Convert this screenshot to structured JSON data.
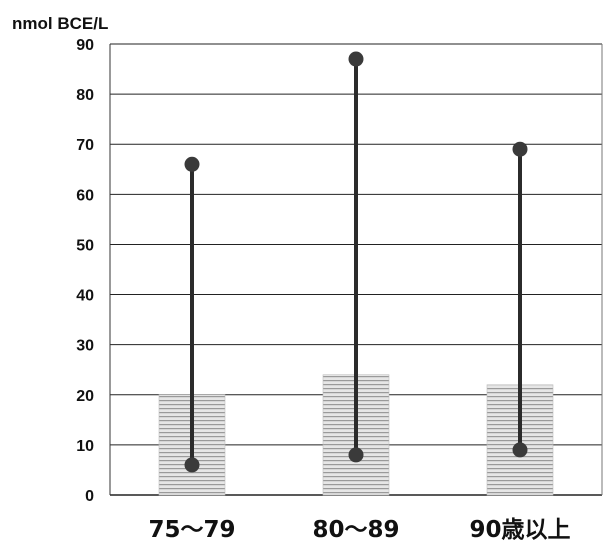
{
  "chart_data": {
    "type": "bar",
    "unit_label": "nmol BCE/L",
    "categories": [
      "75～79",
      "80～89",
      "90歳以上"
    ],
    "values": [
      20,
      24,
      22
    ],
    "range_low": [
      6,
      8,
      9
    ],
    "range_high": [
      66,
      87,
      69
    ],
    "ylim": [
      0,
      90
    ],
    "yticks": [
      0,
      10,
      20,
      30,
      40,
      50,
      60,
      70,
      80,
      90
    ],
    "grid": true,
    "colors": {
      "bar_fill": "#e6e6e6",
      "bar_stripe": "#9a9a9a",
      "range_line": "#2b2b2b",
      "marker": "#3a3a3a",
      "grid": "#222222"
    }
  }
}
